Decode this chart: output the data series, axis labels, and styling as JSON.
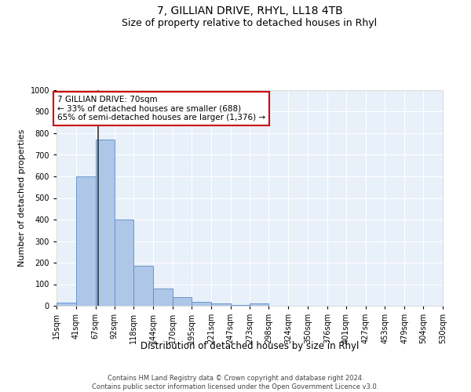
{
  "title1": "7, GILLIAN DRIVE, RHYL, LL18 4TB",
  "title2": "Size of property relative to detached houses in Rhyl",
  "xlabel": "Distribution of detached houses by size in Rhyl",
  "ylabel": "Number of detached properties",
  "bin_edges": [
    15,
    41,
    67,
    92,
    118,
    144,
    170,
    195,
    221,
    247,
    273,
    298,
    324,
    350,
    376,
    401,
    427,
    453,
    479,
    504,
    530
  ],
  "bar_heights": [
    15,
    600,
    770,
    400,
    185,
    80,
    40,
    20,
    10,
    5,
    10,
    0,
    0,
    0,
    0,
    0,
    0,
    0,
    0,
    0
  ],
  "bar_color": "#aec6e8",
  "bar_edge_color": "#5b8cc8",
  "property_size": 70,
  "red_line_color": "#333333",
  "annotation_text": "7 GILLIAN DRIVE: 70sqm\n← 33% of detached houses are smaller (688)\n65% of semi-detached houses are larger (1,376) →",
  "annotation_box_color": "#ffffff",
  "annotation_box_edge": "#cc0000",
  "ylim": [
    0,
    1000
  ],
  "yticks": [
    0,
    100,
    200,
    300,
    400,
    500,
    600,
    700,
    800,
    900,
    1000
  ],
  "footnote": "Contains HM Land Registry data © Crown copyright and database right 2024.\nContains public sector information licensed under the Open Government Licence v3.0.",
  "background_color": "#e8f0fa",
  "grid_color": "#ffffff",
  "title1_fontsize": 10,
  "title2_fontsize": 9,
  "xlabel_fontsize": 8.5,
  "ylabel_fontsize": 8,
  "tick_fontsize": 7,
  "annotation_fontsize": 7.5,
  "footnote_fontsize": 6
}
